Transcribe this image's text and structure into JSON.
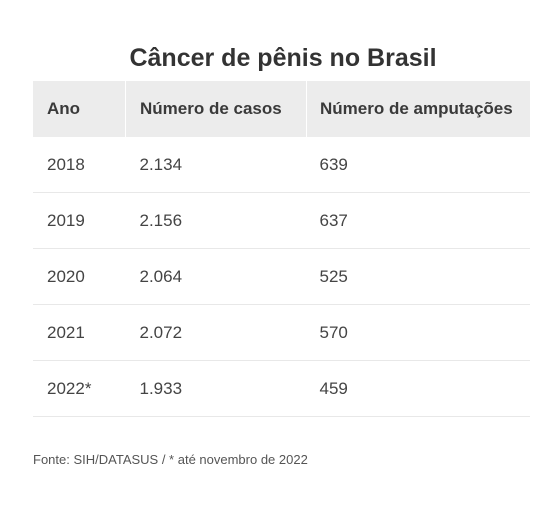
{
  "title": "Câncer de pênis no Brasil",
  "footer": "Fonte: SIH/DATASUS / * até novembro de 2022",
  "chart_data": {
    "type": "table",
    "title": "Câncer de pênis no Brasil",
    "columns": [
      "Ano",
      "Número de casos",
      "Número de amputações"
    ],
    "rows": [
      [
        "2018",
        "2.134",
        "639"
      ],
      [
        "2019",
        "2.156",
        "637"
      ],
      [
        "2020",
        "2.064",
        "525"
      ],
      [
        "2021",
        "2.072",
        "570"
      ],
      [
        "2022*",
        "1.933",
        "459"
      ]
    ]
  }
}
